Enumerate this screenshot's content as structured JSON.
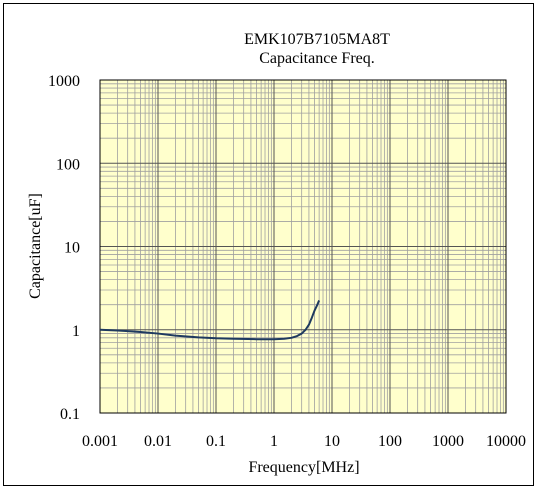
{
  "chart_data": {
    "type": "line",
    "title": "EMK107B7105MA8T",
    "subtitle": "Capacitance Freq.",
    "xlabel": "Frequency[MHz]",
    "ylabel": "Capacitance[uF]",
    "xscale": "log",
    "yscale": "log",
    "xlim": [
      0.001,
      10000
    ],
    "ylim": [
      0.1,
      1000
    ],
    "x_ticks": [
      0.001,
      0.01,
      0.1,
      1,
      10,
      100,
      1000,
      10000
    ],
    "x_tick_labels": [
      "0.001",
      "0.01",
      "0.1",
      "1",
      "10",
      "100",
      "1000",
      "10000"
    ],
    "y_ticks": [
      0.1,
      1,
      10,
      100,
      1000
    ],
    "y_tick_labels": [
      "0.1",
      "1",
      "10",
      "100",
      "1000"
    ],
    "grid": true,
    "legend": "none",
    "colors": {
      "plot_background": "#ffffcc",
      "grid": "#a0a0a0",
      "line": "#1f3a5f"
    },
    "series": [
      {
        "x": [
          0.001,
          0.002,
          0.005,
          0.01,
          0.02,
          0.05,
          0.1,
          0.2,
          0.5,
          1,
          1.5,
          2,
          2.5,
          3,
          3.5,
          4,
          4.5,
          5,
          5.5,
          6
        ],
        "values": [
          1.0,
          0.98,
          0.94,
          0.9,
          0.85,
          0.81,
          0.79,
          0.78,
          0.77,
          0.77,
          0.78,
          0.8,
          0.84,
          0.9,
          1.0,
          1.15,
          1.4,
          1.7,
          1.95,
          2.25
        ]
      }
    ]
  }
}
